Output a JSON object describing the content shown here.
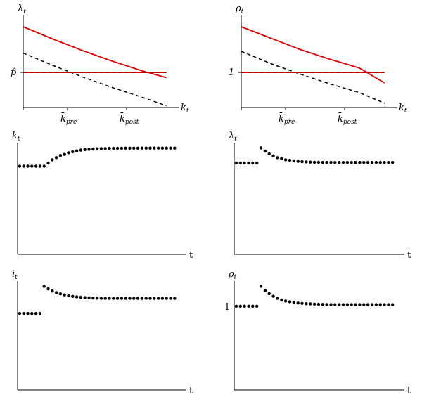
{
  "chart_data": [
    {
      "type": "line",
      "ylabel": "λ",
      "ylabel_sub": "t",
      "xlabel": "k",
      "xlabel_sub": "t",
      "y_tick_label": "p̂",
      "x_tick_labels": [
        {
          "main": "k̄",
          "sub": "pre",
          "x": 0.3
        },
        {
          "main": "k̄",
          "sub": "post",
          "x": 0.7
        }
      ],
      "xlim": [
        0,
        1
      ],
      "ylim": [
        0,
        1
      ],
      "series": [
        {
          "style": "solid",
          "color": "#e00000",
          "x": [
            0,
            0.2,
            0.4,
            0.6,
            0.8,
            0.97
          ],
          "y": [
            0.92,
            0.78,
            0.65,
            0.53,
            0.42,
            0.34
          ]
        },
        {
          "style": "dashed",
          "color": "#000000",
          "x": [
            0,
            0.2,
            0.4,
            0.6,
            0.8,
            0.97
          ],
          "y": [
            0.62,
            0.48,
            0.35,
            0.23,
            0.12,
            0.02
          ]
        },
        {
          "style": "solid-dashed-overlay",
          "color": "#e00000",
          "x": [
            0,
            0.97
          ],
          "y": [
            0.4,
            0.4
          ]
        }
      ]
    },
    {
      "type": "line",
      "ylabel": "ρ",
      "ylabel_sub": "t",
      "xlabel": "k",
      "xlabel_sub": "t",
      "y_tick_label": "1",
      "x_tick_labels": [
        {
          "main": "k̄",
          "sub": "pre",
          "x": 0.3
        },
        {
          "main": "k̄",
          "sub": "post",
          "x": 0.7
        }
      ],
      "xlim": [
        0,
        1
      ],
      "ylim": [
        0,
        1
      ],
      "series": [
        {
          "style": "solid",
          "color": "#e00000",
          "x": [
            0,
            0.2,
            0.4,
            0.6,
            0.8,
            0.97
          ],
          "y": [
            0.92,
            0.79,
            0.66,
            0.55,
            0.45,
            0.28
          ]
        },
        {
          "style": "dashed",
          "color": "#000000",
          "x": [
            0,
            0.2,
            0.4,
            0.6,
            0.8,
            0.97
          ],
          "y": [
            0.64,
            0.5,
            0.38,
            0.27,
            0.17,
            0.05
          ]
        },
        {
          "style": "solid-dashed-overlay",
          "color": "#e00000",
          "x": [
            0,
            0.97
          ],
          "y": [
            0.4,
            0.4
          ]
        }
      ]
    },
    {
      "type": "scatter",
      "ylabel": "k",
      "ylabel_sub": "t",
      "xlabel": "t",
      "xlim": [
        0,
        40
      ],
      "ylim": [
        0,
        1
      ],
      "series": [
        {
          "x": [
            0,
            1,
            2,
            3,
            4,
            5,
            6,
            7,
            8,
            9,
            10,
            11,
            12,
            13,
            14,
            15,
            16,
            17,
            18,
            19,
            20,
            21,
            22,
            23,
            24,
            25,
            26,
            27,
            28,
            29,
            30,
            31,
            32,
            33,
            34,
            35,
            36,
            37,
            38
          ],
          "y": [
            0.82,
            0.82,
            0.82,
            0.82,
            0.82,
            0.82,
            0.82,
            0.85,
            0.88,
            0.9,
            0.92,
            0.93,
            0.945,
            0.955,
            0.963,
            0.97,
            0.975,
            0.978,
            0.98,
            0.982,
            0.984,
            0.985,
            0.986,
            0.986,
            0.987,
            0.987,
            0.988,
            0.988,
            0.988,
            0.988,
            0.989,
            0.989,
            0.989,
            0.989,
            0.989,
            0.989,
            0.989,
            0.989,
            0.989
          ]
        }
      ]
    },
    {
      "type": "scatter",
      "ylabel": "λ",
      "ylabel_sub": "t",
      "xlabel": "t",
      "xlim": [
        0,
        40
      ],
      "ylim": [
        0,
        1
      ],
      "series": [
        {
          "x": [
            0,
            1,
            2,
            3,
            4,
            5,
            6,
            7,
            8,
            9,
            10,
            11,
            12,
            13,
            14,
            15,
            16,
            17,
            18,
            19,
            20,
            21,
            22,
            23,
            24,
            25,
            26,
            27,
            28,
            29,
            30,
            31,
            32,
            33,
            34,
            35,
            36,
            37,
            38
          ],
          "y": [
            0.85,
            0.85,
            0.85,
            0.85,
            0.85,
            0.85,
            0.99,
            0.96,
            0.935,
            0.915,
            0.9,
            0.89,
            0.88,
            0.875,
            0.87,
            0.865,
            0.862,
            0.86,
            0.858,
            0.857,
            0.856,
            0.855,
            0.855,
            0.855,
            0.855,
            0.855,
            0.855,
            0.855,
            0.855,
            0.855,
            0.855,
            0.855,
            0.855,
            0.855,
            0.855,
            0.855,
            0.855,
            0.855,
            0.855
          ]
        }
      ]
    },
    {
      "type": "scatter",
      "ylabel": "i",
      "ylabel_sub": "t",
      "xlabel": "t",
      "xlim": [
        0,
        40
      ],
      "ylim": [
        0,
        1
      ],
      "series": [
        {
          "x": [
            0,
            1,
            2,
            3,
            4,
            5,
            6,
            7,
            8,
            9,
            10,
            11,
            12,
            13,
            14,
            15,
            16,
            17,
            18,
            19,
            20,
            21,
            22,
            23,
            24,
            25,
            26,
            27,
            28,
            29,
            30,
            31,
            32,
            33,
            34,
            35,
            36,
            37,
            38
          ],
          "y": [
            0.73,
            0.73,
            0.73,
            0.73,
            0.73,
            0.73,
            0.99,
            0.965,
            0.945,
            0.93,
            0.918,
            0.908,
            0.9,
            0.894,
            0.889,
            0.885,
            0.882,
            0.88,
            0.878,
            0.877,
            0.876,
            0.875,
            0.875,
            0.875,
            0.875,
            0.875,
            0.875,
            0.875,
            0.875,
            0.875,
            0.875,
            0.875,
            0.875,
            0.875,
            0.875,
            0.875,
            0.875,
            0.875,
            0.875
          ]
        }
      ]
    },
    {
      "type": "scatter",
      "ylabel": "ρ",
      "ylabel_sub": "t",
      "xlabel": "t",
      "y_tick_label": "1",
      "xlim": [
        0,
        40
      ],
      "ylim": [
        0,
        1
      ],
      "series": [
        {
          "x": [
            0,
            1,
            2,
            3,
            4,
            5,
            6,
            7,
            8,
            9,
            10,
            11,
            12,
            13,
            14,
            15,
            16,
            17,
            18,
            19,
            20,
            21,
            22,
            23,
            24,
            25,
            26,
            27,
            28,
            29,
            30,
            31,
            32,
            33,
            34,
            35,
            36,
            37,
            38
          ],
          "y": [
            0.8,
            0.8,
            0.8,
            0.8,
            0.8,
            0.8,
            0.99,
            0.95,
            0.92,
            0.895,
            0.875,
            0.86,
            0.85,
            0.842,
            0.836,
            0.831,
            0.827,
            0.824,
            0.822,
            0.82,
            0.818,
            0.817,
            0.816,
            0.815,
            0.815,
            0.815,
            0.815,
            0.815,
            0.815,
            0.815,
            0.815,
            0.815,
            0.815,
            0.815,
            0.815,
            0.815,
            0.815,
            0.815,
            0.815
          ]
        }
      ]
    }
  ]
}
